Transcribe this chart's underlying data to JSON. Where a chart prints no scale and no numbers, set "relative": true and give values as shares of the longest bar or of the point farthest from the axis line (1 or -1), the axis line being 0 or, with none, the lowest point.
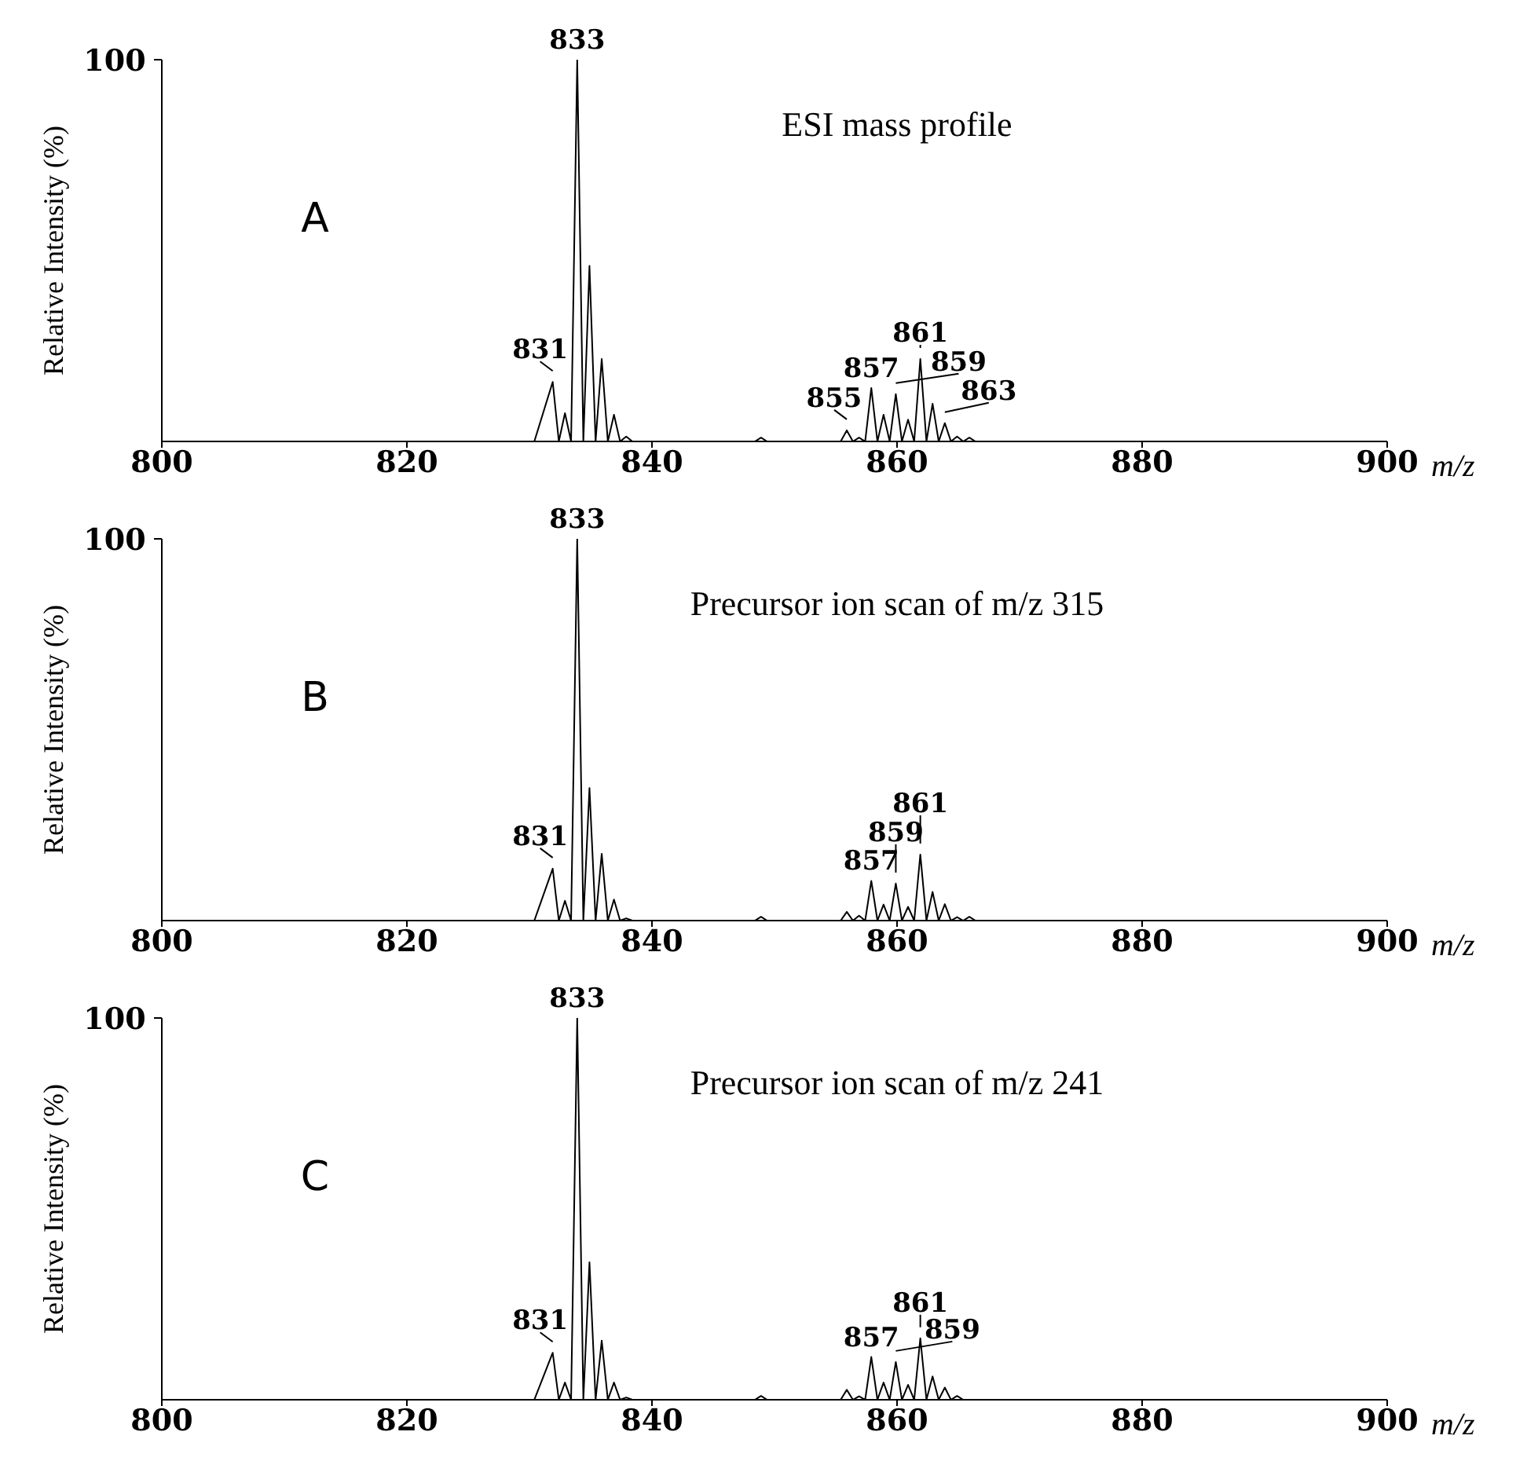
{
  "chart_data": [
    {
      "type": "line",
      "relative": true,
      "title": "A",
      "subtitle": "ESI mass profile",
      "ylabel": "Relative Intensity (%)",
      "xlabel": "m/z",
      "color": "#000000",
      "line_style": "solid",
      "marker": "none",
      "xlim": [
        800,
        900
      ],
      "xticks": [
        800,
        820,
        840,
        860,
        880,
        900
      ],
      "x": [
        800,
        830.4,
        831.9,
        832.4,
        832.9,
        833.4,
        833.9,
        834.4,
        834.9,
        835.4,
        835.9,
        836.4,
        836.9,
        837.4,
        837.9,
        838.4,
        848.4,
        848.9,
        849.4,
        855.4,
        855.9,
        856.4,
        856.9,
        857.4,
        857.9,
        858.4,
        858.9,
        859.4,
        859.9,
        860.4,
        860.9,
        861.4,
        861.9,
        862.4,
        862.9,
        863.4,
        863.9,
        864.4,
        864.9,
        865.4,
        865.9,
        866.4,
        900
      ],
      "values": [
        0,
        0,
        0.156,
        0,
        0.074,
        0,
        1,
        0,
        0.46,
        0,
        0.216,
        0,
        0.07,
        0,
        0.013,
        0,
        0,
        0.01,
        0,
        0,
        0.029,
        0,
        0.01,
        0,
        0.14,
        0,
        0.07,
        0,
        0.124,
        0,
        0.057,
        0,
        0.216,
        0,
        0.099,
        0,
        0.048,
        0,
        0.013,
        0,
        0.01,
        0,
        0
      ],
      "annotations": [
        "100",
        {
          "text": "831",
          "x": 831.9,
          "y": 0.156
        },
        {
          "text": "833",
          "x": 833.9,
          "y": 1
        },
        {
          "text": "855",
          "x": 855.9,
          "y": 0.029
        },
        {
          "text": "857",
          "x": 857.9,
          "y": 0.14
        },
        {
          "text": "859",
          "x": 859.9,
          "y": 0.124
        },
        {
          "text": "861",
          "x": 861.9,
          "y": 0.216
        },
        {
          "text": "863",
          "x": 863.9,
          "y": 0.048
        }
      ]
    },
    {
      "type": "line",
      "relative": true,
      "title": "B",
      "subtitle": "Precursor ion scan of m/z 315",
      "ylabel": "Relative Intensity (%)",
      "xlabel": "m/z",
      "color": "#000000",
      "line_style": "solid",
      "marker": "none",
      "xlim": [
        800,
        900
      ],
      "xticks": [
        800,
        820,
        840,
        860,
        880,
        900
      ],
      "x": [
        800,
        830.4,
        831.9,
        832.4,
        832.9,
        833.4,
        833.9,
        834.4,
        834.9,
        835.4,
        835.9,
        836.4,
        836.9,
        837.4,
        837.9,
        838.4,
        848.4,
        848.9,
        849.4,
        855.4,
        855.9,
        856.4,
        856.9,
        857.4,
        857.9,
        858.4,
        858.9,
        859.4,
        859.9,
        860.4,
        860.9,
        861.4,
        861.9,
        862.4,
        862.9,
        863.4,
        863.9,
        864.4,
        864.9,
        865.4,
        865.9,
        866.4,
        900
      ],
      "values": [
        0,
        0,
        0.136,
        0,
        0.052,
        0,
        1,
        0,
        0.347,
        0,
        0.175,
        0,
        0.055,
        0,
        0.006,
        0,
        0,
        0.01,
        0,
        0,
        0.023,
        0,
        0.013,
        0,
        0.104,
        0,
        0.042,
        0,
        0.097,
        0,
        0.036,
        0,
        0.173,
        0,
        0.075,
        0,
        0.043,
        0,
        0.009,
        0,
        0.01,
        0,
        0
      ],
      "annotations": [
        "100",
        {
          "text": "831",
          "x": 831.9,
          "y": 0.136
        },
        {
          "text": "833",
          "x": 833.9,
          "y": 1
        },
        {
          "text": "857",
          "x": 857.9,
          "y": 0.104
        },
        {
          "text": "859",
          "x": 859.9,
          "y": 0.097
        },
        {
          "text": "861",
          "x": 861.9,
          "y": 0.173
        }
      ]
    },
    {
      "type": "line",
      "relative": true,
      "title": "C",
      "subtitle": "Precursor ion scan of m/z 241",
      "ylabel": "Relative Intensity (%)",
      "xlabel": "m/z",
      "color": "#000000",
      "line_style": "solid",
      "marker": "none",
      "xlim": [
        800,
        900
      ],
      "xticks": [
        800,
        820,
        840,
        860,
        880,
        900
      ],
      "x": [
        800,
        830.4,
        831.9,
        832.4,
        832.9,
        833.4,
        833.9,
        834.4,
        834.9,
        835.4,
        835.9,
        836.4,
        836.9,
        837.4,
        837.9,
        838.4,
        848.4,
        848.9,
        849.4,
        855.4,
        855.9,
        856.4,
        856.9,
        857.4,
        857.9,
        858.4,
        858.9,
        859.4,
        859.9,
        860.4,
        860.9,
        861.4,
        861.9,
        862.4,
        862.9,
        863.4,
        863.9,
        864.4,
        864.9,
        865.4,
        900
      ],
      "values": [
        0,
        0,
        0.123,
        0,
        0.045,
        0,
        1,
        0,
        0.36,
        0,
        0.155,
        0,
        0.045,
        0,
        0.006,
        0,
        0,
        0.01,
        0,
        0,
        0.026,
        0,
        0.009,
        0,
        0.112,
        0,
        0.045,
        0,
        0.099,
        0,
        0.039,
        0,
        0.161,
        0,
        0.061,
        0,
        0.032,
        0,
        0.01,
        0,
        0
      ],
      "annotations": [
        "100",
        {
          "text": "831",
          "x": 831.9,
          "y": 0.123
        },
        {
          "text": "833",
          "x": 833.9,
          "y": 1
        },
        {
          "text": "857",
          "x": 857.9,
          "y": 0.112
        },
        {
          "text": "859",
          "x": 859.9,
          "y": 0.099
        },
        {
          "text": "861",
          "x": 861.9,
          "y": 0.161
        }
      ]
    }
  ]
}
